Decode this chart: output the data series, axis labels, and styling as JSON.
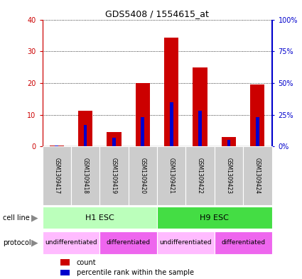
{
  "title": "GDS5408 / 1554615_at",
  "samples": [
    "GSM1309417",
    "GSM1309418",
    "GSM1309419",
    "GSM1309420",
    "GSM1309421",
    "GSM1309422",
    "GSM1309423",
    "GSM1309424"
  ],
  "counts": [
    0.3,
    11.2,
    4.5,
    20.0,
    34.2,
    25.0,
    3.0,
    19.5
  ],
  "percentiles": [
    1.0,
    17.0,
    7.0,
    23.0,
    35.0,
    28.0,
    5.0,
    23.0
  ],
  "ylim_left": [
    0,
    40
  ],
  "ylim_right": [
    0,
    100
  ],
  "yticks_left": [
    0,
    10,
    20,
    30,
    40
  ],
  "yticks_right": [
    0,
    25,
    50,
    75,
    100
  ],
  "ytick_labels_left": [
    "0",
    "10",
    "20",
    "30",
    "40"
  ],
  "ytick_labels_right": [
    "0%",
    "25%",
    "50%",
    "75%",
    "100%"
  ],
  "bar_color": "#cc0000",
  "percentile_color": "#0000cc",
  "bar_width": 0.5,
  "percentile_bar_width": 0.12,
  "cell_line_groups": [
    {
      "label": "H1 ESC",
      "start": 0,
      "end": 3,
      "color": "#bbffbb"
    },
    {
      "label": "H9 ESC",
      "start": 4,
      "end": 7,
      "color": "#44dd44"
    }
  ],
  "protocol_groups": [
    {
      "label": "undifferentiated",
      "start": 0,
      "end": 1,
      "color": "#ffbbff"
    },
    {
      "label": "differentiated",
      "start": 2,
      "end": 3,
      "color": "#ee66ee"
    },
    {
      "label": "undifferentiated",
      "start": 4,
      "end": 5,
      "color": "#ffbbff"
    },
    {
      "label": "differentiated",
      "start": 6,
      "end": 7,
      "color": "#ee66ee"
    }
  ],
  "background_color": "#ffffff",
  "sample_box_color": "#cccccc",
  "legend_count_color": "#cc0000",
  "legend_percentile_color": "#0000cc",
  "left_label_color": "#888888",
  "cell_line_h1_color": "#bbffbb",
  "cell_line_h9_color": "#44dd44",
  "undiff_color": "#ffbbff",
  "diff_color": "#ee66ee"
}
